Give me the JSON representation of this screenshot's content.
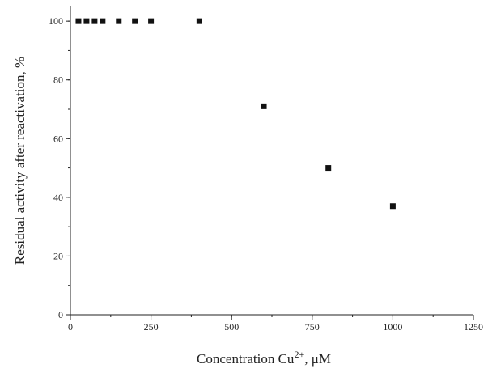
{
  "chart_data": {
    "type": "scatter",
    "xlabel": {
      "text": "Concentration Cu",
      "superscript": "2+",
      "unit": ", μM"
    },
    "ylabel": "Residual activity after reactivation, %",
    "xlim": [
      0,
      1250
    ],
    "ylim": [
      0,
      105
    ],
    "x_ticks": [
      0,
      250,
      500,
      750,
      1000,
      1250
    ],
    "x_tick_labels": [
      "0",
      "250",
      "500",
      "750",
      "1000",
      "1250"
    ],
    "y_ticks": [
      0,
      20,
      40,
      60,
      80,
      100
    ],
    "y_tick_labels": [
      "0",
      "20",
      "40",
      "60",
      "80",
      "100"
    ],
    "x_minor_step": 125,
    "y_minor_step": 10,
    "grid": false,
    "marker": "square",
    "marker_color": "#111111",
    "series": [
      {
        "x": [
          25,
          50,
          75,
          100,
          150,
          200,
          250,
          400,
          600,
          800,
          1000
        ],
        "y": [
          100,
          100,
          100,
          100,
          100,
          100,
          100,
          100,
          71,
          50,
          37
        ]
      }
    ]
  }
}
